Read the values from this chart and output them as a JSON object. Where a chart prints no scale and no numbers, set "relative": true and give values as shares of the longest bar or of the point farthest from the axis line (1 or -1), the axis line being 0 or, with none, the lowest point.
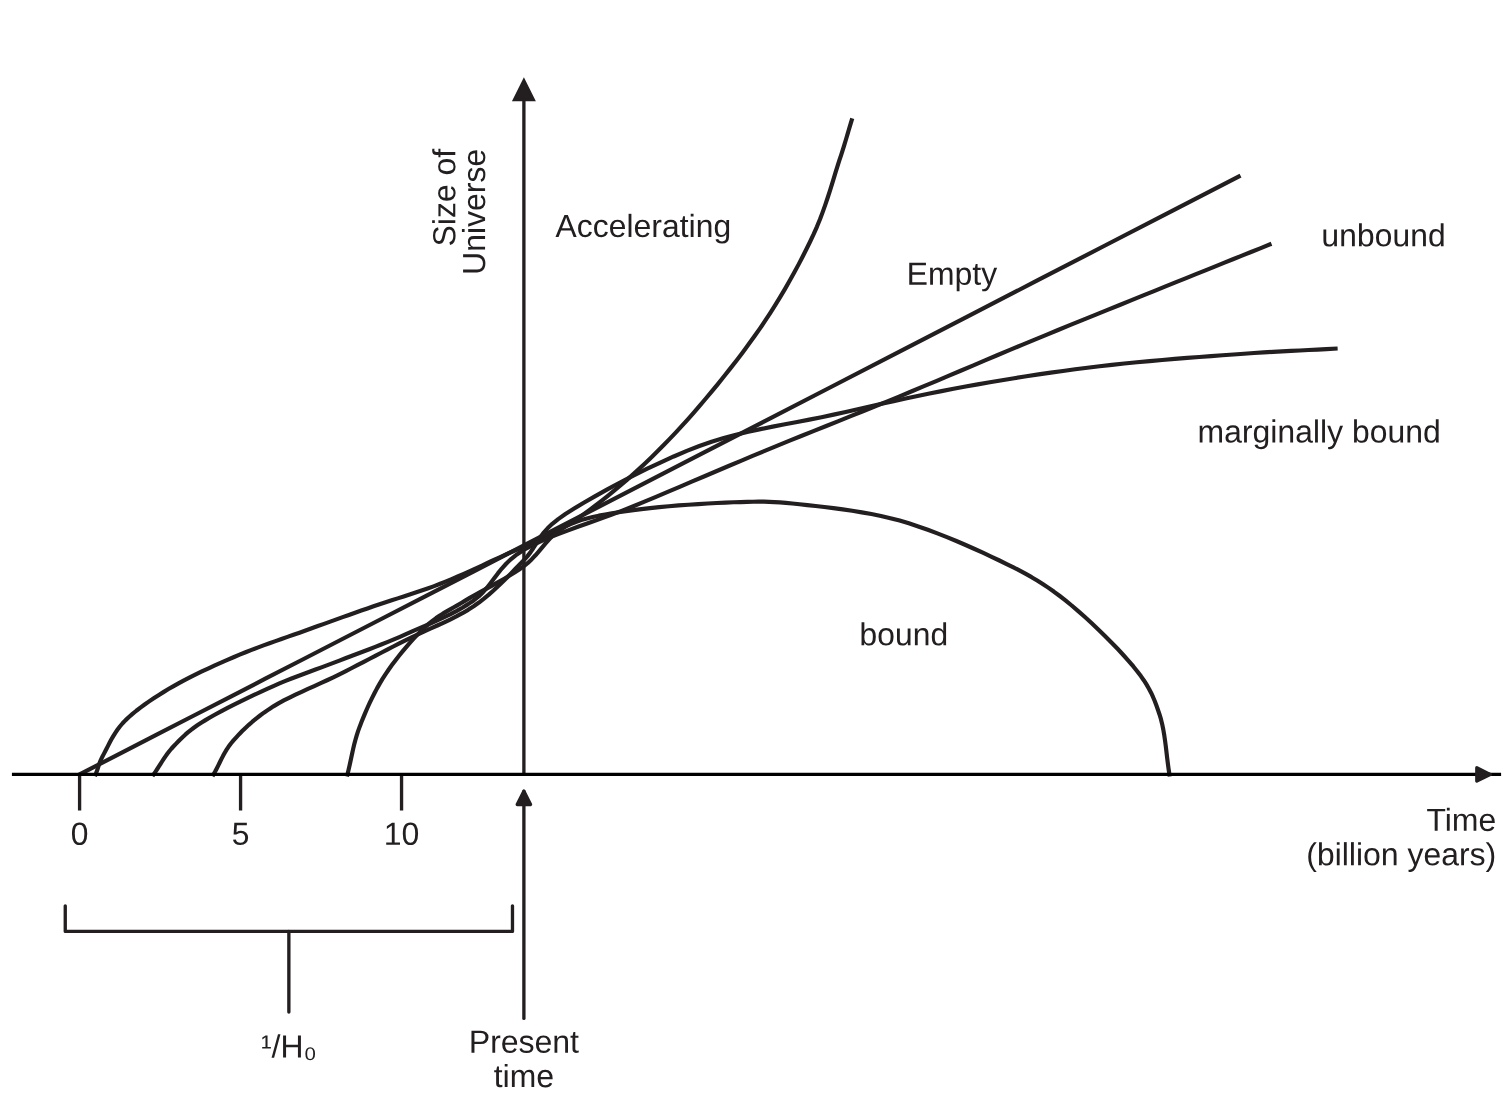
{
  "chart_data": {
    "type": "line",
    "relative": true,
    "xlabel": "Time\n(billion years)",
    "ylabel": "Size of\nUniverse",
    "xlim": [
      -2.05,
      44.1
    ],
    "xticks": [
      0,
      5,
      10
    ],
    "grid": false,
    "legend": false,
    "marker": "none",
    "line_style": "solid",
    "series": [
      {
        "name": "Accelerating",
        "color": "#231f20",
        "x": [
          0.5,
          0.75,
          1.43,
          2.92,
          4.97,
          7.02,
          9.13,
          11.18,
          13.23,
          15.09,
          17.2,
          19.25,
          21.3,
          22.8,
          23.6,
          23.98
        ],
        "values": [
          0,
          0.031,
          0.083,
          0.135,
          0.183,
          0.22,
          0.257,
          0.291,
          0.336,
          0.379,
          0.459,
          0.563,
          0.694,
          0.826,
          0.939,
          1.0
        ]
      },
      {
        "name": "Empty",
        "color": "#231f20",
        "x": [
          0,
          13.8,
          36.0
        ],
        "values": [
          0,
          0.35,
          0.914
        ]
      },
      {
        "name": "unbound",
        "color": "#231f20",
        "x": [
          2.3,
          2.92,
          3.91,
          6.02,
          8.07,
          10.12,
          12.24,
          13.79,
          17.2,
          21.3,
          25.47,
          29.63,
          33.73,
          36.96
        ],
        "values": [
          0,
          0.043,
          0.083,
          0.135,
          0.174,
          0.214,
          0.266,
          0.343,
          0.41,
          0.495,
          0.578,
          0.664,
          0.746,
          0.81
        ]
      },
      {
        "name": "marginally bound",
        "color": "#231f20",
        "x": [
          4.16,
          4.78,
          6.02,
          8.07,
          10.12,
          12.24,
          13.79,
          15.09,
          19.25,
          23.42,
          27.52,
          31.68,
          35.84,
          39.01
        ],
        "values": [
          0,
          0.052,
          0.104,
          0.153,
          0.205,
          0.257,
          0.327,
          0.398,
          0.502,
          0.55,
          0.593,
          0.624,
          0.642,
          0.651
        ]
      },
      {
        "name": "bound",
        "color": "#231f20",
        "x": [
          8.32,
          8.7,
          9.5,
          10.75,
          11.99,
          13.79,
          15.09,
          17.2,
          20.31,
          22.36,
          25.47,
          28.57,
          30.62,
          32.73,
          33.54,
          33.85
        ],
        "values": [
          0,
          0.073,
          0.153,
          0.226,
          0.266,
          0.318,
          0.379,
          0.404,
          0.416,
          0.413,
          0.388,
          0.327,
          0.266,
          0.165,
          0.092,
          0
        ]
      }
    ],
    "ref_lines": [
      {
        "axis": "x",
        "value": 13.8,
        "color": "#231f20"
      }
    ],
    "annotations": [
      "Present\ntime",
      "¹/H₀"
    ]
  }
}
